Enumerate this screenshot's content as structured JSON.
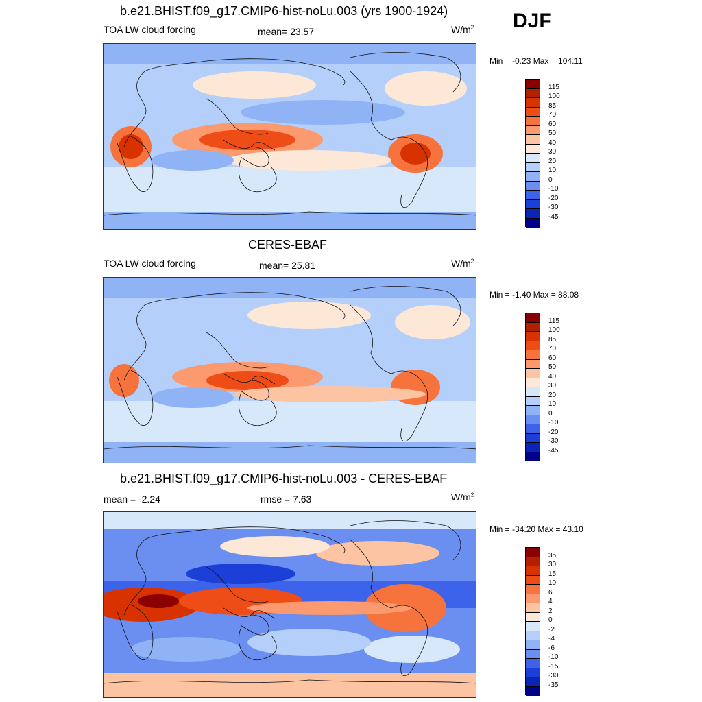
{
  "season": "DJF",
  "panels": [
    {
      "title": "b.e21.BHIST.f09_g17.CMIP6-hist-noLu.003 (yrs 1900-1924)",
      "left_label": "TOA LW cloud forcing",
      "center_label": "mean=  23.57",
      "units": "W/m",
      "units_sup": "2",
      "minmax": "Min =  -0.23 Max = 104.11",
      "colorbar": {
        "labels": [
          "115",
          "100",
          "85",
          "70",
          "60",
          "50",
          "40",
          "30",
          "20",
          "10",
          "0",
          "-10",
          "-20",
          "-30",
          "-45"
        ],
        "colors": [
          "#8b0000",
          "#b22000",
          "#d83200",
          "#ef4d18",
          "#f7733d",
          "#fb9a6e",
          "#fdc4a4",
          "#fde8d8",
          "#d7e8fb",
          "#b4cffa",
          "#8fb3f5",
          "#6a8ff0",
          "#3d63eb",
          "#1c3fd8",
          "#0a24b4",
          "#00008b"
        ]
      },
      "variant": "model"
    },
    {
      "title": "CERES-EBAF",
      "left_label": "TOA LW cloud forcing",
      "center_label": "mean=  25.81",
      "units": "W/m",
      "units_sup": "2",
      "minmax": "Min =  -1.40 Max =  88.08",
      "colorbar": {
        "labels": [
          "115",
          "100",
          "85",
          "70",
          "60",
          "50",
          "40",
          "30",
          "20",
          "10",
          "0",
          "-10",
          "-20",
          "-30",
          "-45"
        ],
        "colors": [
          "#8b0000",
          "#b22000",
          "#d83200",
          "#ef4d18",
          "#f7733d",
          "#fb9a6e",
          "#fdc4a4",
          "#fde8d8",
          "#d7e8fb",
          "#b4cffa",
          "#8fb3f5",
          "#6a8ff0",
          "#3d63eb",
          "#1c3fd8",
          "#0a24b4",
          "#00008b"
        ]
      },
      "variant": "obs"
    },
    {
      "title": "b.e21.BHIST.f09_g17.CMIP6-hist-noLu.003 - CERES-EBAF",
      "left_label": "mean =  -2.24",
      "center_label": "rmse =   7.63",
      "units": "W/m",
      "units_sup": "2",
      "minmax": "Min = -34.20 Max =  43.10",
      "colorbar": {
        "labels": [
          "35",
          "30",
          "15",
          "10",
          "6",
          "4",
          "2",
          "0",
          "-2",
          "-4",
          "-6",
          "-10",
          "-15",
          "-30",
          "-35"
        ],
        "colors": [
          "#8b0000",
          "#b22000",
          "#d83200",
          "#ef4d18",
          "#f7733d",
          "#fb9a6e",
          "#fdc4a4",
          "#fde8d8",
          "#d7e8fb",
          "#b4cffa",
          "#8fb3f5",
          "#6a8ff0",
          "#3d63eb",
          "#1c3fd8",
          "#0a24b4",
          "#00008b"
        ]
      },
      "variant": "diff"
    }
  ]
}
